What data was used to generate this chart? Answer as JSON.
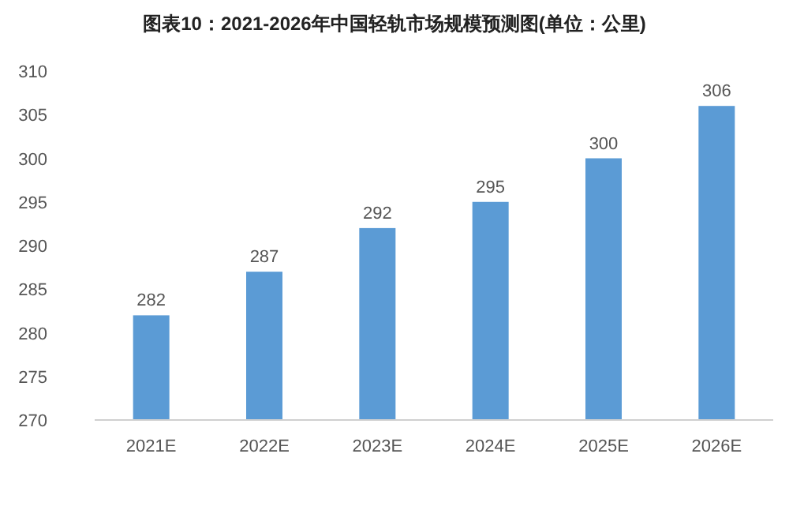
{
  "chart_data": {
    "type": "bar",
    "title": "图表10：2021-2026年中国轻轨市场规模预测图(单位：公里)",
    "categories": [
      "2021E",
      "2022E",
      "2023E",
      "2024E",
      "2025E",
      "2026E"
    ],
    "values": [
      282,
      287,
      292,
      295,
      300,
      306
    ],
    "color": "#5b9bd5",
    "ylim": [
      270,
      310
    ],
    "yticks": [
      270,
      275,
      280,
      285,
      290,
      295,
      300,
      305,
      310
    ],
    "data_labels": true,
    "grid": false
  }
}
